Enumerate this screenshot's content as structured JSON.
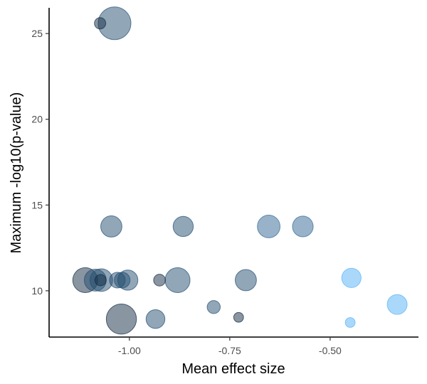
{
  "chart_data": {
    "type": "scatter",
    "title": "",
    "xlabel": "Mean effect size",
    "ylabel": "Maximum -log10(p-value)",
    "xlim": [
      -1.2,
      -0.28
    ],
    "ylim": [
      7.3,
      26.5
    ],
    "x_ticks": [
      -1.0,
      -0.75,
      -0.5
    ],
    "x_tick_labels": [
      "-1.00",
      "-0.75",
      "-0.50"
    ],
    "y_ticks": [
      10,
      15,
      20,
      25
    ],
    "y_tick_labels": [
      "10",
      "15",
      "20",
      "25"
    ],
    "grid": false,
    "legend": "none",
    "color_scale": [
      "#132b43",
      "#56b1f7"
    ],
    "points": [
      {
        "x": -1.037,
        "y": 25.6,
        "size": 1.0,
        "shade": 0.25
      },
      {
        "x": -1.073,
        "y": 25.6,
        "size": 0.12,
        "shade": 0.0
      },
      {
        "x": -1.045,
        "y": 13.75,
        "size": 0.42,
        "shade": 0.25
      },
      {
        "x": -0.866,
        "y": 13.75,
        "size": 0.38,
        "shade": 0.25
      },
      {
        "x": -0.653,
        "y": 13.75,
        "size": 0.48,
        "shade": 0.45
      },
      {
        "x": -0.568,
        "y": 13.75,
        "size": 0.4,
        "shade": 0.45
      },
      {
        "x": -1.11,
        "y": 10.62,
        "size": 0.58,
        "shade": 0.0
      },
      {
        "x": -1.085,
        "y": 10.62,
        "size": 0.45,
        "shade": 0.25
      },
      {
        "x": -1.07,
        "y": 10.62,
        "size": 0.48,
        "shade": 0.25
      },
      {
        "x": -1.072,
        "y": 10.62,
        "size": 0.12,
        "shade": 0.0
      },
      {
        "x": -1.03,
        "y": 10.62,
        "size": 0.23,
        "shade": 0.25
      },
      {
        "x": -1.018,
        "y": 10.62,
        "size": 0.23,
        "shade": 0.25
      },
      {
        "x": -1.004,
        "y": 10.62,
        "size": 0.38,
        "shade": 0.25
      },
      {
        "x": -0.925,
        "y": 10.62,
        "size": 0.13,
        "shade": 0.0
      },
      {
        "x": -0.88,
        "y": 10.62,
        "size": 0.58,
        "shade": 0.25
      },
      {
        "x": -0.71,
        "y": 10.62,
        "size": 0.42,
        "shade": 0.25
      },
      {
        "x": -0.447,
        "y": 10.75,
        "size": 0.35,
        "shade": 1.0
      },
      {
        "x": -1.02,
        "y": 8.35,
        "size": 0.85,
        "shade": 0.0
      },
      {
        "x": -0.935,
        "y": 8.35,
        "size": 0.33,
        "shade": 0.25
      },
      {
        "x": -0.79,
        "y": 9.05,
        "size": 0.16,
        "shade": 0.25
      },
      {
        "x": -0.728,
        "y": 8.45,
        "size": 0.09,
        "shade": 0.0
      },
      {
        "x": -0.45,
        "y": 8.15,
        "size": 0.09,
        "shade": 1.0
      },
      {
        "x": -0.333,
        "y": 9.2,
        "size": 0.37,
        "shade": 1.0
      }
    ]
  }
}
